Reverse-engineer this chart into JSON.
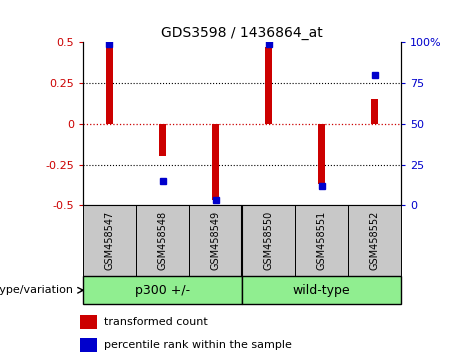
{
  "title": "GDS3598 / 1436864_at",
  "samples": [
    "GSM458547",
    "GSM458548",
    "GSM458549",
    "GSM458550",
    "GSM458551",
    "GSM458552"
  ],
  "red_bars": [
    0.48,
    -0.2,
    -0.47,
    0.47,
    -0.37,
    0.15
  ],
  "blue_dots": [
    99,
    15,
    3,
    99,
    12,
    80
  ],
  "ylim_left": [
    -0.5,
    0.5
  ],
  "ylim_right": [
    0,
    100
  ],
  "yticks_left": [
    -0.5,
    -0.25,
    0,
    0.25,
    0.5
  ],
  "yticks_right": [
    0,
    25,
    50,
    75,
    100
  ],
  "ytick_labels_left": [
    "-0.5",
    "-0.25",
    "0",
    "0.25",
    "0.5"
  ],
  "ytick_labels_right": [
    "0",
    "25",
    "50",
    "75",
    "100%"
  ],
  "group_label": "genotype/variation",
  "legend_red": "transformed count",
  "legend_blue": "percentile rank within the sample",
  "bar_color": "#CC0000",
  "dot_color": "#0000CC",
  "zero_line_color": "#CC0000",
  "grid_color": "#000000",
  "label_box_color": "#C8C8C8",
  "group_box_color": "#90EE90",
  "bar_width": 0.12,
  "dot_size": 5
}
